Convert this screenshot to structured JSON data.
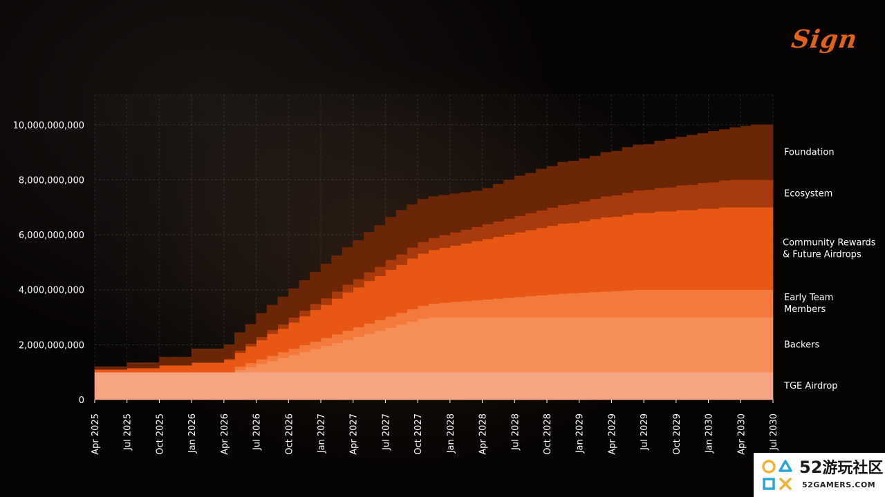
{
  "brand": {
    "name": "Sign",
    "color": "#e0611a"
  },
  "watermark": {
    "number": "52",
    "text": "游玩社区",
    "site": "52GAMERS.COM"
  },
  "chart_data": {
    "type": "area",
    "title": "",
    "xlabel": "",
    "ylabel": "",
    "ylim": [
      0,
      11100000000
    ],
    "y_ticks": [
      0,
      2000000000,
      4000000000,
      6000000000,
      8000000000,
      10000000000
    ],
    "y_tick_labels": [
      "0",
      "2,000,000,000",
      "4,000,000,000",
      "6,000,000,000",
      "8,000,000,000",
      "10,000,000,000"
    ],
    "x_tick_labels": [
      "Apr 2025",
      "Jul 2025",
      "Oct 2025",
      "Jan 2026",
      "Apr 2026",
      "Jul 2026",
      "Oct 2026",
      "Jan 2027",
      "Apr 2027",
      "Jul 2027",
      "Oct 2027",
      "Jan 2028",
      "Apr 2028",
      "Jul 2028",
      "Oct 2028",
      "Jan 2029",
      "Apr 2029",
      "Jul 2029",
      "Oct 2029",
      "Jan 2030",
      "Apr 2030",
      "Jul 2030"
    ],
    "grid": true,
    "legend_position": "right",
    "stacked": true,
    "step": true,
    "months": 63,
    "series": [
      {
        "name": "TGE Airdrop",
        "color": "#f5a582",
        "values": [
          1000000000,
          1000000000,
          1000000000,
          1000000000,
          1000000000,
          1000000000,
          1000000000,
          1000000000,
          1000000000,
          1000000000,
          1000000000,
          1000000000,
          1000000000,
          1000000000,
          1000000000,
          1000000000,
          1000000000,
          1000000000,
          1000000000,
          1000000000,
          1000000000,
          1000000000,
          1000000000,
          1000000000,
          1000000000,
          1000000000,
          1000000000,
          1000000000,
          1000000000,
          1000000000,
          1000000000,
          1000000000,
          1000000000,
          1000000000,
          1000000000,
          1000000000,
          1000000000,
          1000000000,
          1000000000,
          1000000000,
          1000000000,
          1000000000,
          1000000000,
          1000000000,
          1000000000,
          1000000000,
          1000000000,
          1000000000,
          1000000000,
          1000000000,
          1000000000,
          1000000000,
          1000000000,
          1000000000,
          1000000000,
          1000000000,
          1000000000,
          1000000000,
          1000000000,
          1000000000,
          1000000000,
          1000000000,
          1000000000
        ]
      },
      {
        "name": "Backers",
        "color": "#f68e59",
        "values": [
          0,
          0,
          0,
          0,
          0,
          0,
          0,
          0,
          0,
          0,
          0,
          0,
          0,
          80000000,
          190000000,
          300000000,
          410000000,
          520000000,
          630000000,
          740000000,
          850000000,
          960000000,
          1070000000,
          1180000000,
          1290000000,
          1400000000,
          1510000000,
          1620000000,
          1730000000,
          1840000000,
          1950000000,
          2000000000,
          2000000000,
          2000000000,
          2000000000,
          2000000000,
          2000000000,
          2000000000,
          2000000000,
          2000000000,
          2000000000,
          2000000000,
          2000000000,
          2000000000,
          2000000000,
          2000000000,
          2000000000,
          2000000000,
          2000000000,
          2000000000,
          2000000000,
          2000000000,
          2000000000,
          2000000000,
          2000000000,
          2000000000,
          2000000000,
          2000000000,
          2000000000,
          2000000000,
          2000000000,
          2000000000,
          2000000000
        ]
      },
      {
        "name": "Early Team Members",
        "color": "#f47a3b",
        "values": [
          0,
          0,
          0,
          0,
          0,
          0,
          0,
          0,
          0,
          0,
          0,
          0,
          0,
          130000000,
          150000000,
          170000000,
          190000000,
          210000000,
          230000000,
          250000000,
          270000000,
          290000000,
          310000000,
          330000000,
          350000000,
          370000000,
          390000000,
          410000000,
          430000000,
          450000000,
          470000000,
          500000000,
          530000000,
          560000000,
          590000000,
          620000000,
          650000000,
          680000000,
          710000000,
          740000000,
          770000000,
          800000000,
          830000000,
          860000000,
          880000000,
          900000000,
          920000000,
          940000000,
          960000000,
          980000000,
          1000000000,
          1000000000,
          1000000000,
          1000000000,
          1000000000,
          1000000000,
          1000000000,
          1000000000,
          1000000000,
          1000000000,
          1000000000,
          1000000000,
          1000000000
        ]
      },
      {
        "name": "Community Rewards & Future Airdrops",
        "color": "#e85814",
        "values": [
          100000000,
          100000000,
          100000000,
          150000000,
          150000000,
          150000000,
          250000000,
          250000000,
          250000000,
          350000000,
          350000000,
          350000000,
          450000000,
          500000000,
          600000000,
          700000000,
          800000000,
          850000000,
          950000000,
          1050000000,
          1150000000,
          1200000000,
          1300000000,
          1400000000,
          1450000000,
          1550000000,
          1600000000,
          1700000000,
          1750000000,
          1850000000,
          1900000000,
          1950000000,
          2000000000,
          2050000000,
          2100000000,
          2150000000,
          2200000000,
          2250000000,
          2300000000,
          2350000000,
          2400000000,
          2450000000,
          2500000000,
          2550000000,
          2550000000,
          2600000000,
          2650000000,
          2700000000,
          2700000000,
          2750000000,
          2800000000,
          2800000000,
          2850000000,
          2850000000,
          2900000000,
          2900000000,
          2950000000,
          2950000000,
          3000000000,
          3000000000,
          3000000000,
          3000000000,
          3000000000
        ]
      },
      {
        "name": "Ecosystem",
        "color": "#a73b0d",
        "values": [
          0,
          0,
          0,
          0,
          0,
          0,
          0,
          0,
          0,
          0,
          0,
          0,
          50000000,
          80000000,
          100000000,
          120000000,
          140000000,
          160000000,
          180000000,
          200000000,
          220000000,
          240000000,
          260000000,
          280000000,
          300000000,
          320000000,
          340000000,
          360000000,
          380000000,
          400000000,
          420000000,
          440000000,
          460000000,
          480000000,
          500000000,
          520000000,
          540000000,
          560000000,
          580000000,
          600000000,
          620000000,
          640000000,
          660000000,
          680000000,
          700000000,
          720000000,
          740000000,
          760000000,
          780000000,
          800000000,
          820000000,
          840000000,
          860000000,
          880000000,
          900000000,
          920000000,
          940000000,
          960000000,
          980000000,
          1000000000,
          1000000000,
          1000000000,
          1000000000
        ]
      },
      {
        "name": "Foundation",
        "color": "#6b2608",
        "values": [
          100000000,
          100000000,
          100000000,
          200000000,
          200000000,
          200000000,
          300000000,
          300000000,
          300000000,
          500000000,
          500000000,
          500000000,
          500000000,
          650000000,
          700000000,
          850000000,
          900000000,
          1000000000,
          1050000000,
          1100000000,
          1150000000,
          1250000000,
          1300000000,
          1350000000,
          1400000000,
          1450000000,
          1500000000,
          1550000000,
          1600000000,
          1550000000,
          1550000000,
          1500000000,
          1450000000,
          1400000000,
          1350000000,
          1300000000,
          1300000000,
          1350000000,
          1400000000,
          1450000000,
          1450000000,
          1500000000,
          1500000000,
          1550000000,
          1550000000,
          1550000000,
          1550000000,
          1600000000,
          1600000000,
          1650000000,
          1650000000,
          1650000000,
          1700000000,
          1750000000,
          1750000000,
          1800000000,
          1800000000,
          1850000000,
          1850000000,
          1900000000,
          1950000000,
          2000000000,
          2000000000
        ]
      }
    ],
    "legend_labels": [
      {
        "series": "Foundation",
        "lines": [
          "Foundation"
        ]
      },
      {
        "series": "Ecosystem",
        "lines": [
          "Ecosystem"
        ]
      },
      {
        "series": "Community Rewards & Future Airdrops",
        "lines": [
          "Community Rewards",
          "& Future Airdrops"
        ]
      },
      {
        "series": "Early Team Members",
        "lines": [
          "Early Team",
          "Members"
        ]
      },
      {
        "series": "Backers",
        "lines": [
          "Backers"
        ]
      },
      {
        "series": "TGE Airdrop",
        "lines": [
          "TGE Airdrop"
        ]
      }
    ]
  }
}
